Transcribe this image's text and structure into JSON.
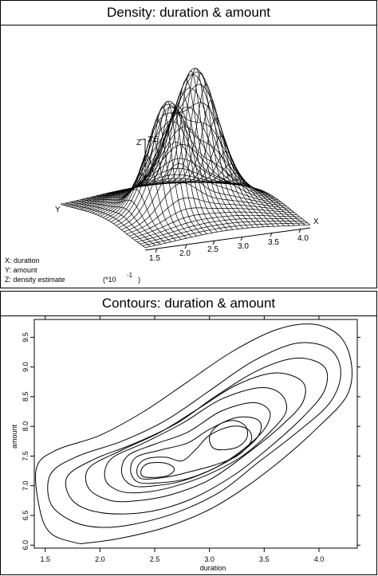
{
  "panels": {
    "top_title": "Density: duration & amount",
    "bottom_title": "Contours: duration & amount"
  },
  "chart_data": [
    {
      "type": "surface",
      "title": "Density: duration & amount",
      "axis_letters": {
        "x": "X",
        "y": "Y",
        "z": "Z"
      },
      "x_ticks": [
        "1.5",
        "2.0",
        "2.5",
        "3.0",
        "3.5",
        "4.0"
      ],
      "z_ticks": [
        "3.5"
      ],
      "legend_lines": [
        "X: duration",
        "Y: amount",
        "Z: density estimate"
      ],
      "scale_note": "(*10",
      "scale_exponent": "-1",
      "scale_close": ")",
      "peaks": [
        {
          "duration": 3.1,
          "amount": 8.0,
          "height": 3.6
        },
        {
          "duration": 2.4,
          "amount": 7.3,
          "height": 3.0
        }
      ]
    },
    {
      "type": "contour",
      "title": "Contours: duration & amount",
      "xlabel": "duration",
      "ylabel": "amount",
      "xlim": [
        1.4,
        4.35
      ],
      "ylim": [
        5.95,
        9.8
      ],
      "x_ticks": [
        1.5,
        2.0,
        2.5,
        3.0,
        3.5,
        4.0
      ],
      "y_ticks": [
        6.0,
        6.5,
        7.0,
        7.5,
        8.0,
        8.5,
        9.0,
        9.5
      ],
      "contours": [
        {
          "level": 1,
          "points": [
            [
              1.78,
              6.04
            ],
            [
              1.55,
              6.2
            ],
            [
              1.45,
              6.6
            ],
            [
              1.42,
              7.3
            ],
            [
              1.6,
              7.6
            ],
            [
              2.0,
              7.85
            ],
            [
              2.4,
              8.25
            ],
            [
              2.8,
              8.75
            ],
            [
              3.2,
              9.25
            ],
            [
              3.6,
              9.62
            ],
            [
              3.95,
              9.72
            ],
            [
              4.2,
              9.5
            ],
            [
              4.3,
              9.0
            ],
            [
              4.25,
              8.5
            ],
            [
              4.0,
              8.0
            ],
            [
              3.7,
              7.5
            ],
            [
              3.35,
              7.0
            ],
            [
              3.0,
              6.6
            ],
            [
              2.6,
              6.3
            ],
            [
              2.2,
              6.12
            ],
            [
              1.9,
              6.04
            ]
          ]
        },
        {
          "level": 2,
          "points": [
            [
              1.75,
              6.4
            ],
            [
              1.55,
              6.7
            ],
            [
              1.55,
              7.2
            ],
            [
              1.8,
              7.5
            ],
            [
              2.2,
              7.75
            ],
            [
              2.6,
              8.1
            ],
            [
              3.0,
              8.6
            ],
            [
              3.4,
              9.1
            ],
            [
              3.8,
              9.4
            ],
            [
              4.1,
              9.3
            ],
            [
              4.2,
              8.9
            ],
            [
              4.1,
              8.4
            ],
            [
              3.8,
              7.9
            ],
            [
              3.45,
              7.4
            ],
            [
              3.1,
              6.9
            ],
            [
              2.7,
              6.55
            ],
            [
              2.3,
              6.35
            ],
            [
              2.0,
              6.3
            ]
          ]
        },
        {
          "level": 3,
          "points": [
            [
              2.0,
              6.55
            ],
            [
              1.75,
              6.75
            ],
            [
              1.7,
              7.15
            ],
            [
              1.95,
              7.45
            ],
            [
              2.3,
              7.7
            ],
            [
              2.7,
              8.05
            ],
            [
              3.05,
              8.5
            ],
            [
              3.45,
              8.95
            ],
            [
              3.8,
              9.15
            ],
            [
              4.05,
              9.0
            ],
            [
              4.05,
              8.6
            ],
            [
              3.85,
              8.15
            ],
            [
              3.55,
              7.65
            ],
            [
              3.2,
              7.15
            ],
            [
              2.8,
              6.75
            ],
            [
              2.4,
              6.55
            ]
          ]
        },
        {
          "level": 4,
          "points": [
            [
              2.1,
              6.75
            ],
            [
              1.9,
              6.95
            ],
            [
              1.9,
              7.3
            ],
            [
              2.2,
              7.6
            ],
            [
              2.55,
              7.9
            ],
            [
              2.9,
              8.3
            ],
            [
              3.25,
              8.7
            ],
            [
              3.6,
              8.9
            ],
            [
              3.85,
              8.75
            ],
            [
              3.85,
              8.4
            ],
            [
              3.65,
              8.0
            ],
            [
              3.35,
              7.55
            ],
            [
              3.0,
              7.1
            ],
            [
              2.65,
              6.85
            ],
            [
              2.35,
              6.75
            ]
          ]
        },
        {
          "level": 5,
          "points": [
            [
              2.2,
              6.9
            ],
            [
              2.05,
              7.1
            ],
            [
              2.1,
              7.45
            ],
            [
              2.4,
              7.72
            ],
            [
              2.75,
              8.05
            ],
            [
              3.1,
              8.45
            ],
            [
              3.45,
              8.65
            ],
            [
              3.65,
              8.55
            ],
            [
              3.7,
              8.25
            ],
            [
              3.55,
              7.9
            ],
            [
              3.3,
              7.5
            ],
            [
              3.0,
              7.2
            ],
            [
              2.7,
              7.0
            ],
            [
              2.45,
              6.9
            ]
          ]
        },
        {
          "level": 6,
          "points": [
            [
              2.3,
              7.0
            ],
            [
              2.2,
              7.2
            ],
            [
              2.25,
              7.5
            ],
            [
              2.5,
              7.7
            ],
            [
              2.8,
              7.9
            ],
            [
              3.1,
              8.25
            ],
            [
              3.4,
              8.4
            ],
            [
              3.55,
              8.25
            ],
            [
              3.5,
              7.95
            ],
            [
              3.3,
              7.6
            ],
            [
              3.05,
              7.3
            ],
            [
              2.75,
              7.08
            ],
            [
              2.5,
              7.0
            ]
          ]
        },
        {
          "level": 7,
          "points": [
            [
              2.35,
              7.06
            ],
            [
              2.28,
              7.25
            ],
            [
              2.33,
              7.48
            ],
            [
              2.55,
              7.6
            ],
            [
              2.8,
              7.72
            ],
            [
              3.0,
              7.95
            ],
            [
              3.25,
              8.15
            ],
            [
              3.45,
              8.1
            ],
            [
              3.45,
              7.85
            ],
            [
              3.28,
              7.55
            ],
            [
              3.05,
              7.3
            ],
            [
              2.8,
              7.12
            ],
            [
              2.55,
              7.05
            ]
          ]
        },
        {
          "level": 8,
          "points": [
            [
              2.38,
              7.12
            ],
            [
              2.34,
              7.3
            ],
            [
              2.42,
              7.45
            ],
            [
              2.6,
              7.48
            ],
            [
              2.75,
              7.42
            ],
            [
              2.88,
              7.62
            ],
            [
              3.0,
              7.85
            ],
            [
              3.2,
              8.0
            ],
            [
              3.35,
              7.95
            ],
            [
              3.38,
              7.75
            ],
            [
              3.25,
              7.5
            ],
            [
              3.05,
              7.35
            ],
            [
              2.85,
              7.25
            ],
            [
              2.62,
              7.15
            ]
          ]
        },
        {
          "level": 9,
          "points": [
            [
              2.4,
              7.15
            ],
            [
              2.38,
              7.28
            ],
            [
              2.45,
              7.38
            ],
            [
              2.6,
              7.38
            ],
            [
              2.68,
              7.28
            ],
            [
              2.6,
              7.16
            ]
          ]
        },
        {
          "level": 9,
          "points": [
            [
              3.05,
              7.62
            ],
            [
              3.0,
              7.82
            ],
            [
              3.08,
              8.02
            ],
            [
              3.22,
              8.1
            ],
            [
              3.33,
              8.0
            ],
            [
              3.34,
              7.8
            ],
            [
              3.24,
              7.64
            ]
          ]
        }
      ]
    }
  ]
}
